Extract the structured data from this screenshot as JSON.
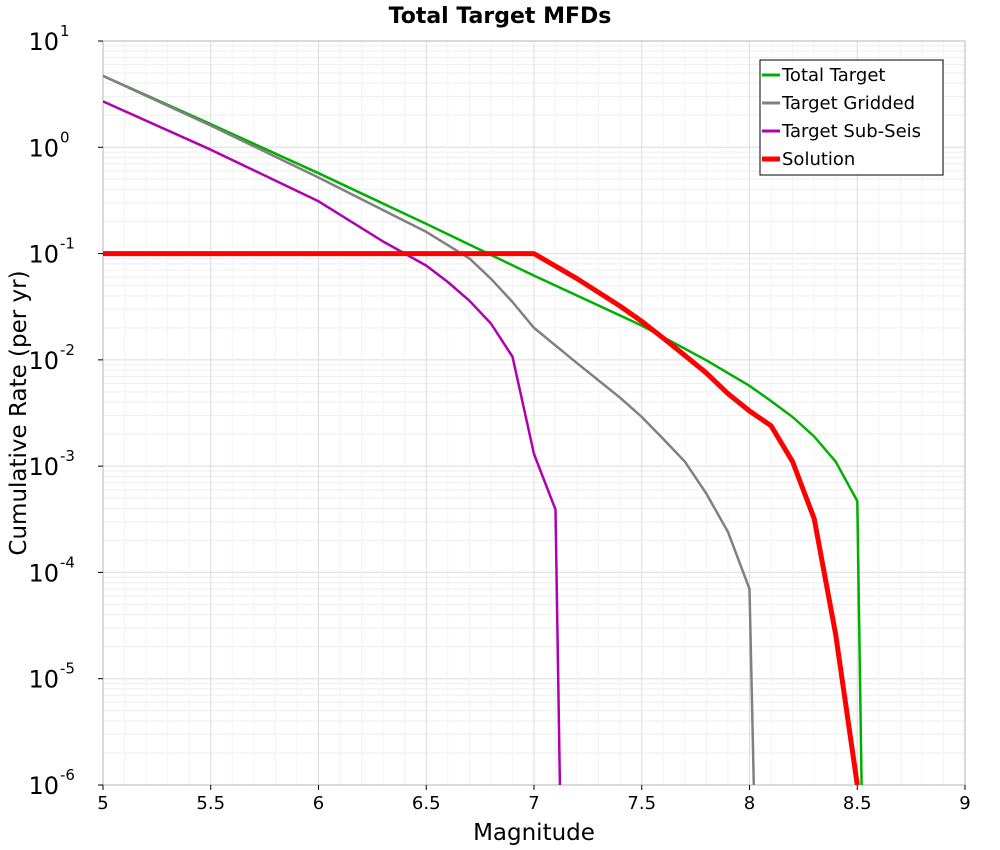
{
  "chart_data": {
    "type": "line",
    "title": "Total Target MFDs",
    "xlabel": "Magnitude",
    "ylabel": "Cumulative Rate (per yr)",
    "yscale": "log",
    "xlim": [
      5,
      9
    ],
    "ylim": [
      1e-06,
      10
    ],
    "grid": true,
    "legend_position": "top-right",
    "x_ticks": [
      5,
      5.5,
      6,
      6.5,
      7,
      7.5,
      8,
      8.5,
      9
    ],
    "x_tick_labels": [
      "5",
      "5.5",
      "6",
      "6.5",
      "7",
      "7.5",
      "8",
      "8.5",
      "9"
    ],
    "y_ticks": [
      {
        "value": 10,
        "base": "10",
        "exp": "1"
      },
      {
        "value": 1,
        "base": "10",
        "exp": "0"
      },
      {
        "value": 0.1,
        "base": "10",
        "exp": "-1"
      },
      {
        "value": 0.01,
        "base": "10",
        "exp": "-2"
      },
      {
        "value": 0.001,
        "base": "10",
        "exp": "-3"
      },
      {
        "value": 0.0001,
        "base": "10",
        "exp": "-4"
      },
      {
        "value": 1e-05,
        "base": "10",
        "exp": "-5"
      },
      {
        "value": 1e-06,
        "base": "10",
        "exp": "-6"
      }
    ],
    "series": [
      {
        "name": "Total Target",
        "color": "#00b000",
        "width": 2.5,
        "x": [
          5.0,
          5.5,
          6.0,
          6.5,
          7.0,
          7.5,
          7.8,
          8.0,
          8.1,
          8.2,
          8.3,
          8.4,
          8.5,
          8.52
        ],
        "y": [
          4.7,
          1.65,
          0.57,
          0.19,
          0.062,
          0.021,
          0.0099,
          0.0057,
          0.0041,
          0.0029,
          0.0019,
          0.0011,
          0.00047,
          1e-06
        ]
      },
      {
        "name": "Target Gridded",
        "color": "#808080",
        "width": 2.5,
        "x": [
          5.0,
          5.5,
          6.0,
          6.5,
          6.7,
          6.8,
          6.9,
          7.0,
          7.2,
          7.4,
          7.5,
          7.6,
          7.7,
          7.8,
          7.9,
          8.0,
          8.02
        ],
        "y": [
          4.7,
          1.6,
          0.52,
          0.16,
          0.09,
          0.058,
          0.035,
          0.02,
          0.0093,
          0.0044,
          0.0029,
          0.0018,
          0.0011,
          0.00055,
          0.00024,
          7e-05,
          1e-06
        ]
      },
      {
        "name": "Target Sub-Seis",
        "color": "#b000b0",
        "width": 2.5,
        "x": [
          5.0,
          5.5,
          6.0,
          6.3,
          6.5,
          6.6,
          6.7,
          6.8,
          6.9,
          7.0,
          7.1,
          7.12
        ],
        "y": [
          2.7,
          0.95,
          0.31,
          0.13,
          0.077,
          0.054,
          0.036,
          0.022,
          0.0107,
          0.0013,
          0.00039,
          1e-06
        ]
      },
      {
        "name": "Solution",
        "color": "#ff0000",
        "width": 5,
        "x": [
          5.0,
          6.0,
          7.0,
          7.2,
          7.4,
          7.5,
          7.6,
          7.7,
          7.8,
          7.9,
          8.0,
          8.1,
          8.2,
          8.3,
          8.4,
          8.5
        ],
        "y": [
          0.1,
          0.1,
          0.1,
          0.058,
          0.032,
          0.023,
          0.016,
          0.011,
          0.0075,
          0.0048,
          0.0033,
          0.0024,
          0.0011,
          0.00032,
          2.6e-05,
          1e-06
        ]
      }
    ]
  }
}
